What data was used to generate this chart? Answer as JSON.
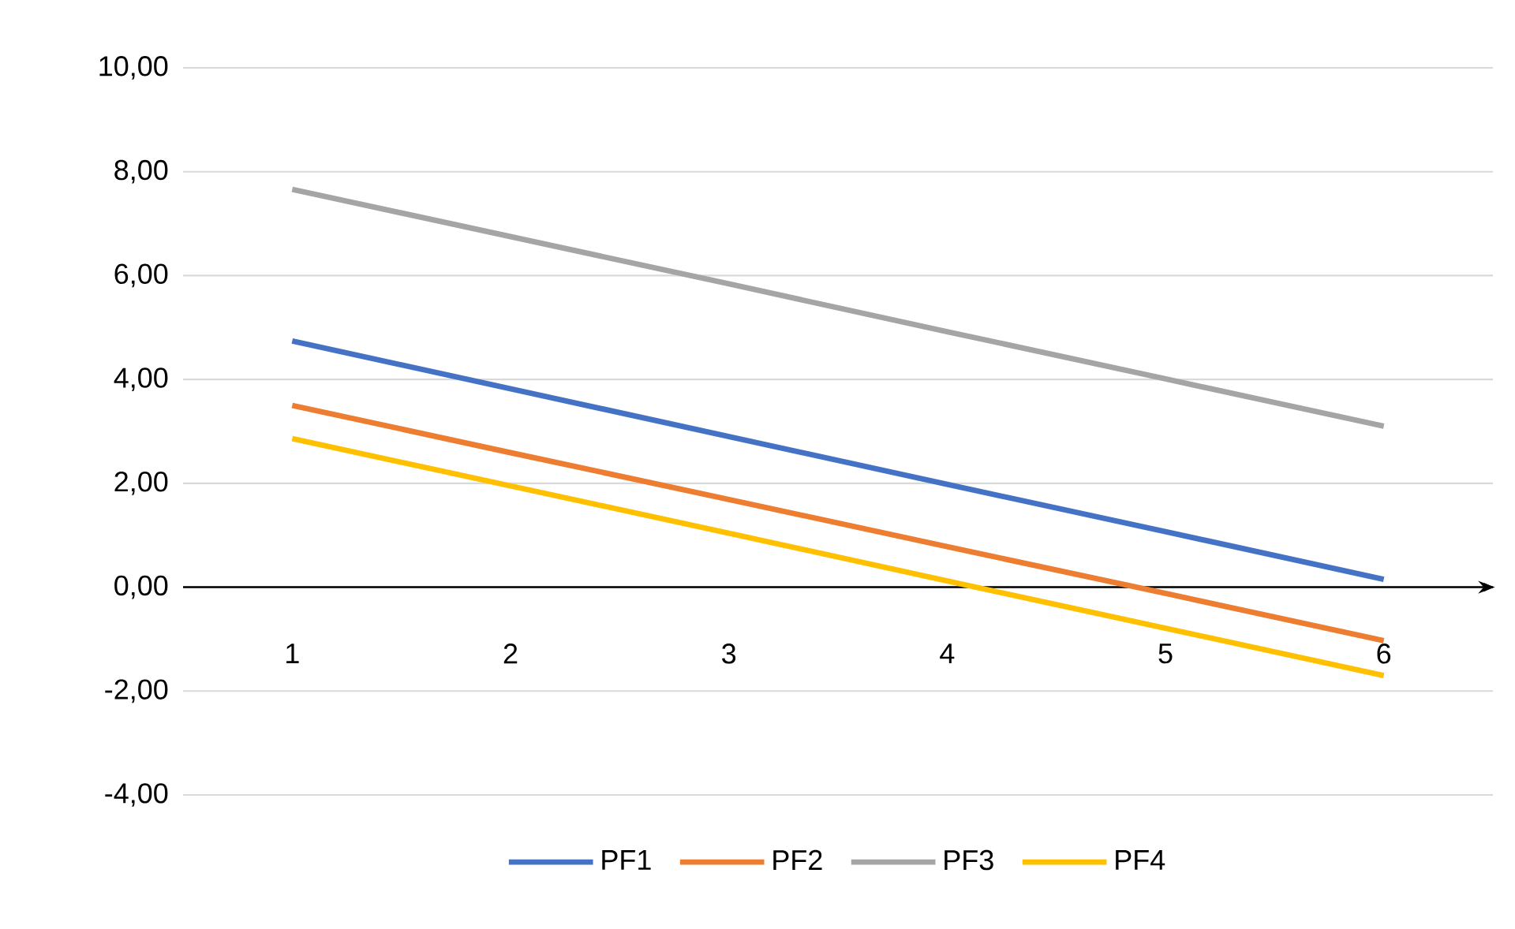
{
  "chart_data": {
    "type": "line",
    "categories": [
      "1",
      "2",
      "3",
      "4",
      "5",
      "6"
    ],
    "series": [
      {
        "name": "PF1",
        "color": "#4472c4",
        "values": [
          4.74,
          3.82,
          2.9,
          1.98,
          1.07,
          0.15
        ]
      },
      {
        "name": "PF2",
        "color": "#ed7d31",
        "values": [
          3.5,
          2.59,
          1.69,
          0.78,
          -0.12,
          -1.03
        ]
      },
      {
        "name": "PF3",
        "color": "#a5a5a5",
        "values": [
          7.66,
          6.75,
          5.84,
          4.92,
          4.01,
          3.1
        ]
      },
      {
        "name": "PF4",
        "color": "#ffc000",
        "values": [
          2.86,
          1.95,
          1.04,
          0.12,
          -0.79,
          -1.7
        ]
      }
    ],
    "ylim": [
      -4,
      10
    ],
    "yticks": [
      {
        "value": -4,
        "label": "-4,00"
      },
      {
        "value": -2,
        "label": "-2,00"
      },
      {
        "value": 0,
        "label": "0,00"
      },
      {
        "value": 2,
        "label": "2,00"
      },
      {
        "value": 4,
        "label": "4,00"
      },
      {
        "value": 6,
        "label": "6,00"
      },
      {
        "value": 8,
        "label": "8,00"
      },
      {
        "value": 10,
        "label": "10,00"
      }
    ],
    "grid": "y",
    "legend": "bottom"
  }
}
